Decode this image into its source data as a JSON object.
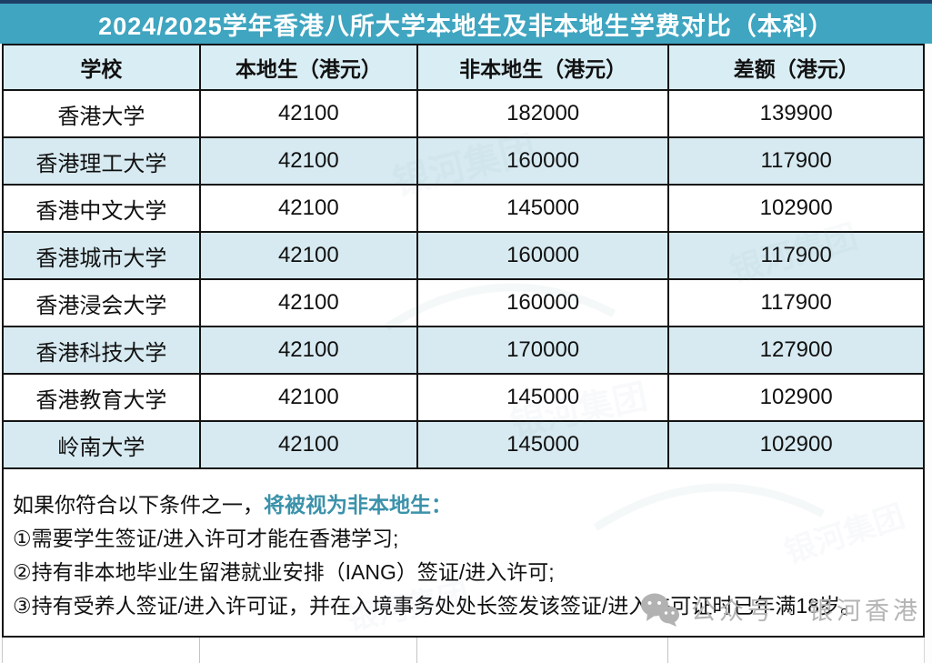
{
  "title": "2024/2025学年香港八所大学本地生及非本地生学费对比（本科）",
  "chart_data": {
    "type": "table",
    "title": "2024/2025学年香港八所大学本地生及非本地生学费对比（本科）",
    "columns": [
      "学校",
      "本地生（港元）",
      "非本地生（港元）",
      "差额（港元）"
    ],
    "rows": [
      [
        "香港大学",
        "42100",
        "182000",
        "139900"
      ],
      [
        "香港理工大学",
        "42100",
        "160000",
        "117900"
      ],
      [
        "香港中文大学",
        "42100",
        "145000",
        "102900"
      ],
      [
        "香港城市大学",
        "42100",
        "160000",
        "117900"
      ],
      [
        "香港浸会大学",
        "42100",
        "160000",
        "117900"
      ],
      [
        "香港科技大学",
        "42100",
        "170000",
        "127900"
      ],
      [
        "香港教育大学",
        "42100",
        "145000",
        "102900"
      ],
      [
        "岭南大学",
        "42100",
        "145000",
        "102900"
      ]
    ]
  },
  "notes": {
    "intro_plain": "如果你符合以下条件之一，",
    "intro_highlight": "将被视为非本地生：",
    "items": [
      "①需要学生签证/进入许可才能在香港学习;",
      "②持有非本地毕业生留港就业安排（IANG）签证/进入许可;",
      "③持有受养人签证/进入许可证，并在入境事务处处长签发该签证/进入许可证时已年满18岁。"
    ]
  },
  "footer": {
    "label": "公众号 · 银河香港",
    "icon": "wechat-icon"
  },
  "watermark": {
    "brand": "银河集团"
  },
  "colors": {
    "title_bg": "#3fa5c0",
    "title_top_edge": "#1d3f66",
    "header_bg": "#d9edf4",
    "alt_row_bg": "#d7eaf1",
    "border": "#141414",
    "highlight_text": "#3b92aa",
    "footer_text": "#b5b5b5"
  }
}
